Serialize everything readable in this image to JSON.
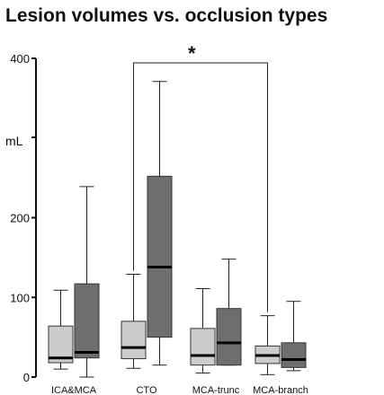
{
  "chart_data": {
    "type": "boxplot",
    "title": "Lesion volumes vs. occlusion types",
    "ylabel": "mL",
    "ylim": [
      0,
      400
    ],
    "yticks": [
      0,
      100,
      200,
      400
    ],
    "ytick_labels": [
      "0",
      "100",
      "200",
      "400"
    ],
    "categories": [
      "ICA&MCA",
      "CTO",
      "MCA-trunc",
      "MCA-branch"
    ],
    "series": [
      {
        "color": "#cccccc",
        "boxes": [
          {
            "min": 10,
            "q1": 18,
            "median": 24,
            "q3": 64,
            "max": 109
          },
          {
            "min": 11,
            "q1": 23,
            "median": 37,
            "q3": 70,
            "max": 129
          },
          {
            "min": 5,
            "q1": 15,
            "median": 27,
            "q3": 61,
            "max": 111
          },
          {
            "min": 3,
            "q1": 17,
            "median": 27,
            "q3": 39,
            "max": 77
          }
        ]
      },
      {
        "color": "#6e6e6e",
        "boxes": [
          {
            "min": 0,
            "q1": 24,
            "median": 31,
            "q3": 117,
            "max": 239
          },
          {
            "min": 15,
            "q1": 50,
            "median": 138,
            "q3": 252,
            "max": 371
          },
          {
            "min": 15,
            "q1": 15,
            "median": 43,
            "q3": 86,
            "max": 148
          },
          {
            "min": 8,
            "q1": 12,
            "median": 22,
            "q3": 43,
            "max": 95
          }
        ]
      }
    ],
    "significance": {
      "from": "CTO",
      "to": "MCA-branch",
      "label": "*"
    }
  }
}
